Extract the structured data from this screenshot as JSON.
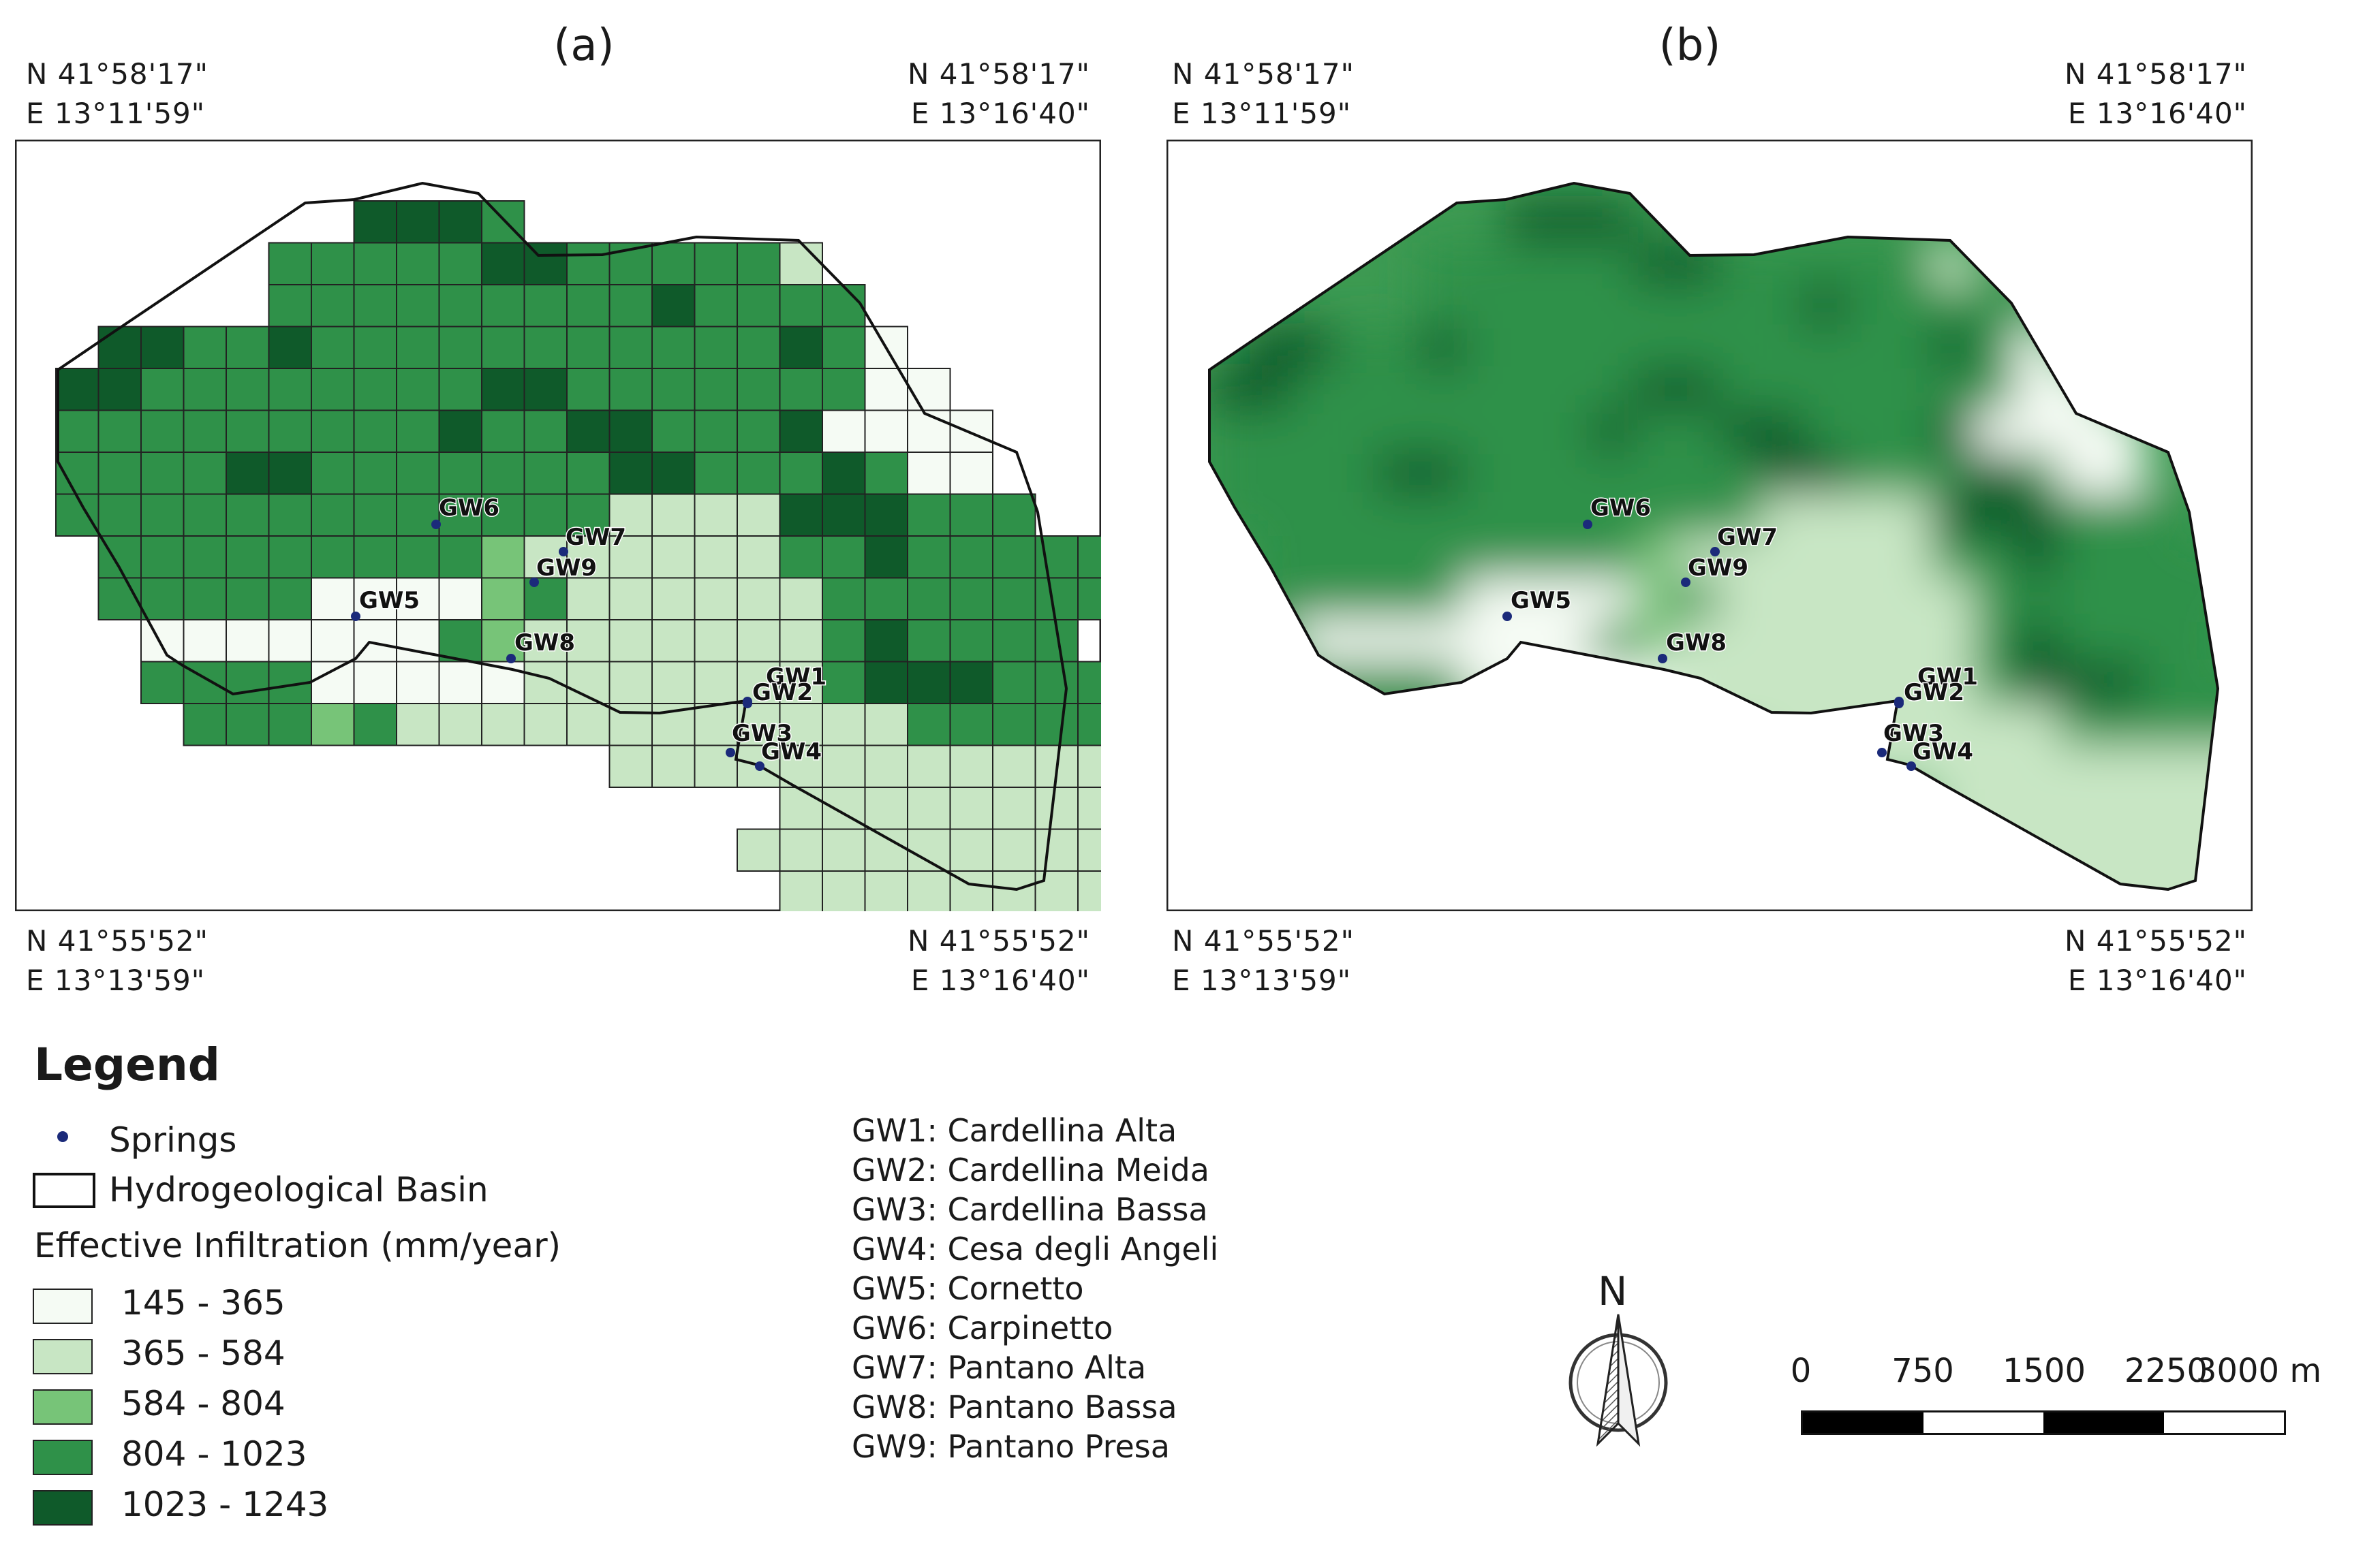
{
  "panels": {
    "a": {
      "label": "(a)",
      "nw": [
        "N 41°58'17\"",
        "E 13°11'59\""
      ],
      "ne": [
        "N 41°58'17\"",
        "E 13°16'40\""
      ],
      "sw": [
        "N 41°55'52\"",
        "E 13°13'59\""
      ],
      "se": [
        "N 41°55'52\"",
        "E 13°16'40\""
      ]
    },
    "b": {
      "label": "(b)",
      "nw": [
        "N 41°58'17\"",
        "E 13°11'59\""
      ],
      "ne": [
        "N 41°58'17\"",
        "E 13°16'40\""
      ],
      "sw": [
        "N 41°55'52\"",
        "E 13°13'59\""
      ],
      "se": [
        "N 41°55'52\"",
        "E 13°16'40\""
      ]
    }
  },
  "springs_on_map": [
    "GW1",
    "GW2",
    "GW3",
    "GW4",
    "GW5",
    "GW6",
    "GW7",
    "GW8",
    "GW9"
  ],
  "legend": {
    "title": "Legend",
    "springs": "Springs",
    "basin": "Hydrogeological Basin",
    "infiltration_title": "Effective Infiltration (mm/year)",
    "classes": [
      {
        "label": "145 - 365",
        "color": "#f5fbf4"
      },
      {
        "label": "365 - 584",
        "color": "#c8e6c4"
      },
      {
        "label": "584 - 804",
        "color": "#77c478"
      },
      {
        "label": "804 - 1023",
        "color": "#2f9149"
      },
      {
        "label": "1023 - 1243",
        "color": "#0f5a2a"
      }
    ],
    "spring_color": "#1b2a7a"
  },
  "spring_names": [
    "GW1: Cardellina Alta",
    "GW2: Cardellina Meida",
    "GW3: Cardellina Bassa",
    "GW4: Cesa degli Angeli",
    "GW5: Cornetto",
    "GW6: Carpinetto",
    "GW7: Pantano Alta",
    "GW8: Pantano Bassa",
    "GW9: Pantano Presa"
  ],
  "north_arrow": {
    "label": "N"
  },
  "scale_bar": {
    "labels": [
      "0",
      "750",
      "1500",
      "2250",
      "3000 m"
    ]
  }
}
